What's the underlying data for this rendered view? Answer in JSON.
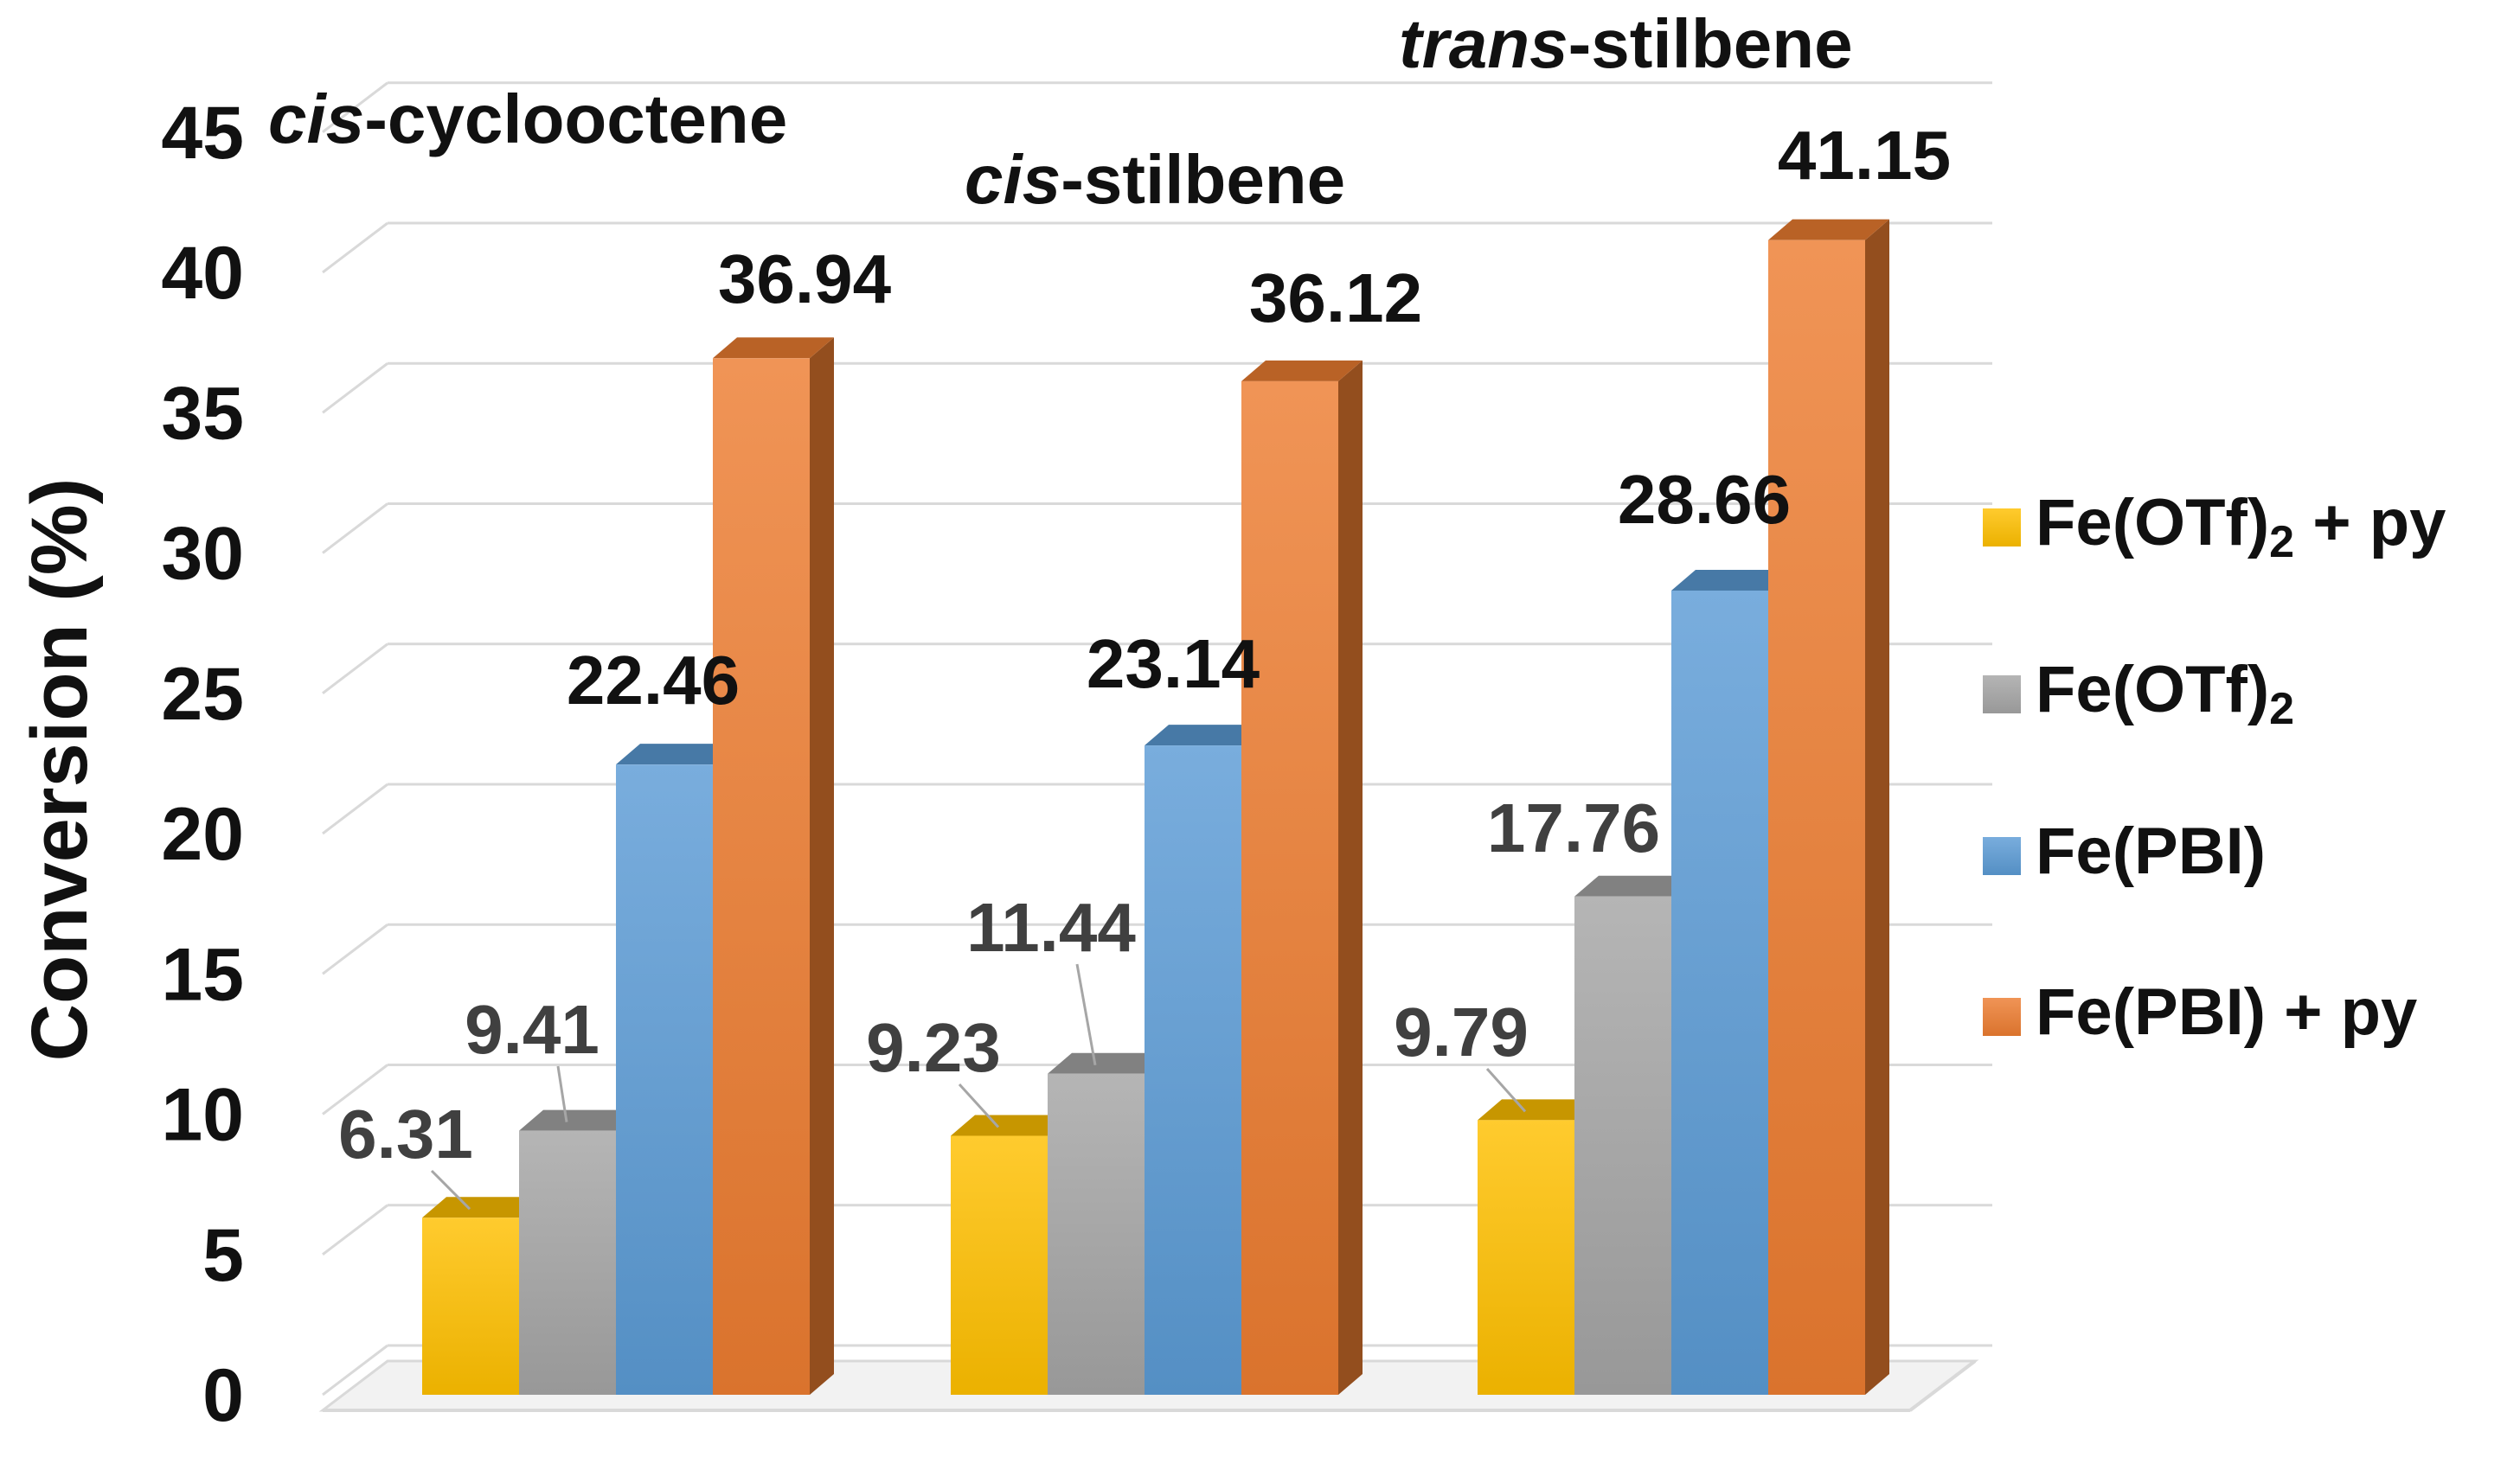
{
  "chart_data": {
    "type": "bar",
    "title": "",
    "ylabel": "Conversion (%)",
    "xlabel": "",
    "ylim": [
      0,
      45
    ],
    "yticks": [
      0,
      5,
      10,
      15,
      20,
      25,
      30,
      35,
      40,
      45
    ],
    "grid": true,
    "legend_position": "right",
    "categories": [
      {
        "italic": "cis",
        "rest": "-cyclooctene"
      },
      {
        "italic": "cis",
        "rest": "-stilbene"
      },
      {
        "italic": "trans",
        "rest": "-stilbene"
      }
    ],
    "series": [
      {
        "name": "Fe(OTf)",
        "subscript": "2",
        "suffix": " + py",
        "values": [
          6.31,
          9.23,
          9.79
        ],
        "labels": [
          "6.31",
          "9.23",
          "9.79"
        ],
        "color": "#FFC000",
        "label_color": "#404040"
      },
      {
        "name": "Fe(OTf)",
        "subscript": "2",
        "suffix": "",
        "values": [
          9.41,
          11.44,
          17.76
        ],
        "labels": [
          "9.41",
          "11.44",
          "17.76"
        ],
        "color": "#A5A5A5",
        "label_color": "#404040"
      },
      {
        "name": "Fe(PBI)",
        "subscript": "",
        "suffix": "",
        "values": [
          22.46,
          23.14,
          28.66
        ],
        "labels": [
          "22.46",
          "23.14",
          "28.66"
        ],
        "color": "#5B9BD5",
        "label_color": "#111111"
      },
      {
        "name": "Fe(PBI) + py",
        "subscript": "",
        "suffix": "",
        "values": [
          36.94,
          36.12,
          41.15
        ],
        "labels": [
          "36.94",
          "36.12",
          "41.15"
        ],
        "color": "#ED7D31",
        "label_color": "#111111"
      }
    ]
  }
}
